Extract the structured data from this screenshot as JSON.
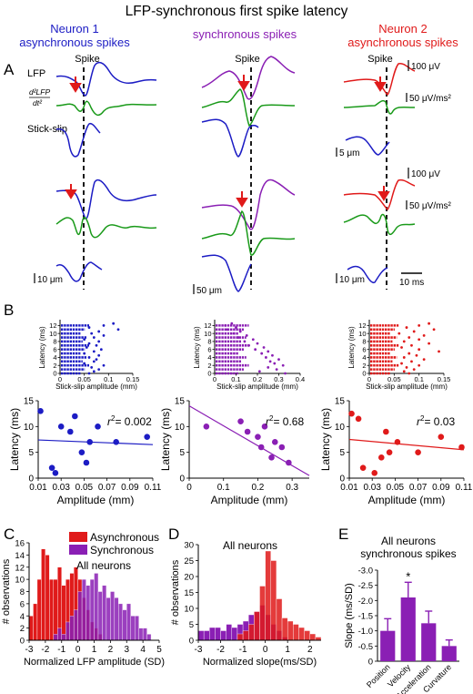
{
  "figure": {
    "title": "LFP-synchronous first spike latency",
    "columns": [
      {
        "line1": "Neuron 1",
        "line2": "asynchronous spikes",
        "color": "#1c1cc4"
      },
      {
        "line1": "",
        "line2": "synchronous spikes",
        "color": "#8a1fb4"
      },
      {
        "line1": "Neuron 2",
        "line2": "asynchronous spikes",
        "color": "#e01a1a"
      }
    ],
    "panel_letters": {
      "a": "A",
      "b": "B",
      "c": "C",
      "d": "D",
      "e": "E"
    },
    "colors": {
      "blue": "#1c1cc4",
      "purple": "#8a1fb4",
      "red": "#e01a1a",
      "green": "#1a9a1a"
    }
  },
  "panel_a": {
    "spike_label": "Spike",
    "row_labels": {
      "lfp": "LFP",
      "deriv_num": "d²LFP",
      "deriv_den": "dt²",
      "stick": "Stick-slip"
    },
    "scales": {
      "lfp": "100 μV",
      "deriv": "50 μV/ms²",
      "small_disp": "5 μm",
      "disp1": "10 μm",
      "disp2": "50 μm",
      "disp3": "10 μm",
      "time": "10 ms"
    }
  },
  "panel_b": {
    "raster_ylabel": "Latency (ms)",
    "raster_xlabel": "Stick-slip amplitude (mm)",
    "scatter_ylabel": "Latency (ms)",
    "scatter_xlabel": "Amplitude (mm)",
    "rasters": [
      {
        "xticks": [
          "0",
          "0.05",
          "0.1",
          "0.15"
        ],
        "yticks": [
          "0",
          "2",
          "4",
          "6",
          "8",
          "10",
          "12"
        ]
      },
      {
        "xticks": [
          "0",
          "0.1",
          "0.2",
          "0.3",
          "0.4"
        ],
        "yticks": [
          "0",
          "2",
          "4",
          "6",
          "8",
          "10",
          "12"
        ]
      },
      {
        "xticks": [
          "0",
          "0.05",
          "0.1",
          "0.15"
        ],
        "yticks": [
          "0",
          "2",
          "4",
          "6",
          "8",
          "10",
          "12"
        ]
      }
    ],
    "r2_prefix": "r",
    "r2_exp": "2",
    "r2_values": [
      "= 0.002",
      "= 0.68",
      "= 0.03"
    ],
    "scatter_xticks": [
      [
        "0.01",
        "0.03",
        "0.05",
        "0.07",
        "0.09",
        "0.11"
      ],
      [
        "0",
        "0.1",
        "0.2",
        "0.3"
      ],
      [
        "0.01",
        "0.03",
        "0.05",
        "0.07",
        "0.09",
        "0.11"
      ]
    ],
    "scatter_yticks": [
      "0",
      "5",
      "10",
      "15"
    ]
  },
  "panel_c": {
    "ylabel": "# observations",
    "xlabel": "Normalized LFP amplitude (SD)",
    "xticks": [
      "-3",
      "-2",
      "-1",
      "0",
      "1",
      "2",
      "3",
      "4",
      "5"
    ],
    "yticks": [
      "0",
      "2",
      "4",
      "6",
      "8",
      "10",
      "12",
      "14",
      "16"
    ],
    "legend_async": "Asynchronous",
    "legend_sync": "Synchronous",
    "note": "All neurons"
  },
  "panel_d": {
    "ylabel": "# observations",
    "xlabel": "Normalized slope(ms/SD)",
    "xticks": [
      "-3",
      "-2",
      "-1",
      "0",
      "1",
      "2"
    ],
    "yticks": [
      "0",
      "5",
      "10",
      "15",
      "20",
      "25",
      "30"
    ],
    "note": "All neurons"
  },
  "panel_e": {
    "title_line1": "All neurons",
    "title_line2": "synchronous spikes",
    "ylabel": "Slope (ms/SD)",
    "yticks": [
      "0",
      "-0.5",
      "-1.0",
      "-1.5",
      "-2.0",
      "-2.5",
      "-3.0"
    ],
    "categories": [
      "Position",
      "Velocity",
      "Acceleration",
      "Curvature"
    ],
    "star": "*"
  },
  "chart_data": [
    {
      "type": "scatter",
      "xlabel": "Stick-slip amplitude (mm)",
      "ylabel": "Latency (ms)",
      "xlim": [
        0,
        0.15
      ],
      "ylim": [
        0,
        13
      ],
      "points": [
        [
          0.11,
          12.5
        ],
        [
          0.09,
          12
        ],
        [
          0.06,
          11.5
        ],
        [
          0.12,
          11
        ],
        [
          0.08,
          10.5
        ],
        [
          0.065,
          10
        ],
        [
          0.09,
          9.5
        ],
        [
          0.07,
          9
        ],
        [
          0.05,
          8.5
        ],
        [
          0.08,
          8
        ],
        [
          0.06,
          7.5
        ],
        [
          0.075,
          7
        ],
        [
          0.055,
          6.5
        ],
        [
          0.085,
          6
        ],
        [
          0.07,
          5.5
        ],
        [
          0.05,
          5
        ],
        [
          0.08,
          4.5
        ],
        [
          0.06,
          4
        ],
        [
          0.075,
          3.5
        ],
        [
          0.07,
          3
        ],
        [
          0.05,
          2.5
        ],
        [
          0.09,
          2
        ],
        [
          0.065,
          1.5
        ],
        [
          0.08,
          1
        ],
        [
          0.07,
          0.5
        ],
        [
          0.06,
          0
        ]
      ]
    },
    {
      "type": "scatter",
      "xlabel": "Stick-slip amplitude (mm)",
      "ylabel": "Latency (ms)",
      "xlim": [
        0,
        0.4
      ],
      "ylim": [
        0,
        13
      ],
      "points": [
        [
          0.08,
          12.5
        ],
        [
          0.05,
          12
        ],
        [
          0.1,
          11.5
        ],
        [
          0.06,
          11
        ],
        [
          0.12,
          10.5
        ],
        [
          0.09,
          10
        ],
        [
          0.15,
          9.5
        ],
        [
          0.11,
          9
        ],
        [
          0.18,
          8.5
        ],
        [
          0.14,
          8
        ],
        [
          0.2,
          7.5
        ],
        [
          0.16,
          7
        ],
        [
          0.23,
          6.5
        ],
        [
          0.19,
          6
        ],
        [
          0.25,
          5.5
        ],
        [
          0.22,
          5
        ],
        [
          0.27,
          4.5
        ],
        [
          0.24,
          4
        ],
        [
          0.3,
          3.5
        ],
        [
          0.26,
          3
        ],
        [
          0.28,
          2.5
        ],
        [
          0.32,
          2
        ],
        [
          0.25,
          1.5
        ],
        [
          0.29,
          1
        ],
        [
          0.21,
          0.5
        ],
        [
          0.33,
          0
        ]
      ]
    },
    {
      "type": "scatter",
      "xlabel": "Stick-slip amplitude (mm)",
      "ylabel": "Latency (ms)",
      "xlim": [
        0,
        0.15
      ],
      "ylim": [
        0,
        13
      ],
      "points": [
        [
          0.12,
          12.5
        ],
        [
          0.1,
          12
        ],
        [
          0.075,
          11.5
        ],
        [
          0.13,
          11
        ],
        [
          0.09,
          10.5
        ],
        [
          0.06,
          10
        ],
        [
          0.11,
          9.5
        ],
        [
          0.08,
          9
        ],
        [
          0.1,
          8.5
        ],
        [
          0.07,
          8
        ],
        [
          0.12,
          7.5
        ],
        [
          0.085,
          7
        ],
        [
          0.065,
          6.5
        ],
        [
          0.1,
          6
        ],
        [
          0.14,
          5.5
        ],
        [
          0.08,
          5
        ],
        [
          0.095,
          4.5
        ],
        [
          0.07,
          4
        ],
        [
          0.11,
          3.5
        ],
        [
          0.085,
          3
        ],
        [
          0.065,
          2.5
        ],
        [
          0.1,
          2
        ],
        [
          0.075,
          1.5
        ],
        [
          0.09,
          1
        ],
        [
          0.07,
          0.5
        ],
        [
          0.08,
          0
        ]
      ]
    },
    {
      "type": "scatter",
      "xlabel": "Amplitude (mm)",
      "ylabel": "Latency (ms)",
      "xlim": [
        0.01,
        0.11
      ],
      "ylim": [
        0,
        15
      ],
      "points": [
        [
          0.012,
          13
        ],
        [
          0.022,
          2
        ],
        [
          0.025,
          1
        ],
        [
          0.03,
          10
        ],
        [
          0.038,
          9
        ],
        [
          0.042,
          12
        ],
        [
          0.048,
          5
        ],
        [
          0.052,
          3
        ],
        [
          0.055,
          7
        ],
        [
          0.062,
          10
        ],
        [
          0.078,
          7
        ],
        [
          0.105,
          8
        ]
      ],
      "fit": {
        "x": [
          0.01,
          0.11
        ],
        "y": [
          7.4,
          6.5
        ]
      }
    },
    {
      "type": "scatter",
      "xlabel": "Amplitude (mm)",
      "ylabel": "Latency (ms)",
      "xlim": [
        0,
        0.35
      ],
      "ylim": [
        0,
        15
      ],
      "points": [
        [
          0.05,
          10
        ],
        [
          0.15,
          11
        ],
        [
          0.17,
          9
        ],
        [
          0.2,
          8
        ],
        [
          0.21,
          6
        ],
        [
          0.22,
          10
        ],
        [
          0.24,
          4
        ],
        [
          0.25,
          7
        ],
        [
          0.27,
          6
        ],
        [
          0.29,
          3
        ]
      ],
      "fit": {
        "x": [
          0.0,
          0.35
        ],
        "y": [
          14,
          0.5
        ]
      }
    },
    {
      "type": "scatter",
      "xlabel": "Amplitude (mm)",
      "ylabel": "Latency (ms)",
      "xlim": [
        0.01,
        0.11
      ],
      "ylim": [
        0,
        15
      ],
      "points": [
        [
          0.012,
          12.5
        ],
        [
          0.018,
          11.5
        ],
        [
          0.022,
          2
        ],
        [
          0.032,
          1
        ],
        [
          0.038,
          4
        ],
        [
          0.042,
          9
        ],
        [
          0.045,
          5
        ],
        [
          0.052,
          7
        ],
        [
          0.07,
          5
        ],
        [
          0.09,
          8
        ],
        [
          0.108,
          6
        ]
      ],
      "fit": {
        "x": [
          0.01,
          0.11
        ],
        "y": [
          7.5,
          5.5
        ]
      }
    },
    {
      "type": "bar",
      "xlabel": "Normalized LFP amplitude (SD)",
      "ylabel": "# observations",
      "xlim": [
        -3,
        5
      ],
      "ylim": [
        0,
        16
      ],
      "bin_width": 0.25,
      "series": [
        {
          "name": "Asynchronous",
          "bin_starts": [
            -3,
            -2.75,
            -2.5,
            -2.25,
            -2,
            -1.75,
            -1.5,
            -1.25,
            -1,
            -0.75,
            -0.5,
            -0.25,
            0,
            0.25,
            0.5,
            0.75,
            1,
            1.25
          ],
          "values": [
            4,
            6,
            10,
            15,
            14,
            10,
            10,
            12,
            9,
            10,
            11,
            12,
            10,
            7,
            5,
            3,
            2,
            1
          ]
        },
        {
          "name": "Synchronous",
          "bin_starts": [
            -1.5,
            -1.25,
            -1,
            -0.75,
            -0.5,
            -0.25,
            0,
            0.25,
            0.5,
            0.75,
            1,
            1.25,
            1.5,
            1.75,
            2,
            2.25,
            2.5,
            2.75,
            3,
            3.25,
            3.5,
            3.75,
            4,
            4.25
          ],
          "values": [
            1,
            2,
            1,
            3,
            4,
            5,
            8,
            10,
            9,
            10,
            11,
            8,
            9,
            7,
            8,
            7,
            6,
            5,
            6,
            4,
            4,
            2,
            2,
            1
          ]
        }
      ]
    },
    {
      "type": "bar",
      "xlabel": "Normalized slope(ms/SD)",
      "ylabel": "# observations",
      "xlim": [
        -3,
        2.5
      ],
      "ylim": [
        0,
        30
      ],
      "bin_width": 0.25,
      "series": [
        {
          "name": "Synchronous",
          "bin_starts": [
            -3,
            -2.75,
            -2.5,
            -2.25,
            -2,
            -1.75,
            -1.5,
            -1.25,
            -1,
            -0.75,
            -0.5,
            -0.25,
            0,
            0.25,
            0.5,
            0.75
          ],
          "values": [
            3,
            3,
            4,
            4,
            3,
            5,
            4,
            5,
            6,
            8,
            9,
            11,
            8,
            5,
            3,
            1
          ]
        },
        {
          "name": "Asynchronous",
          "bin_starts": [
            -1.25,
            -1,
            -0.75,
            -0.5,
            -0.25,
            0,
            0.25,
            0.5,
            0.75,
            1,
            1.25,
            1.5,
            1.75,
            2,
            2.25
          ],
          "values": [
            2,
            3,
            5,
            9,
            17,
            28,
            25,
            13,
            7,
            6,
            5,
            4,
            3,
            2,
            1
          ]
        }
      ]
    },
    {
      "type": "bar",
      "ylabel": "Slope (ms/SD)",
      "ylim": [
        0,
        -3.0
      ],
      "categories": [
        "Position",
        "Velocity",
        "Acceleration",
        "Curvature"
      ],
      "values": [
        -1.0,
        -2.1,
        -1.25,
        -0.5
      ],
      "errors": [
        0.4,
        0.5,
        0.4,
        0.2
      ]
    }
  ]
}
